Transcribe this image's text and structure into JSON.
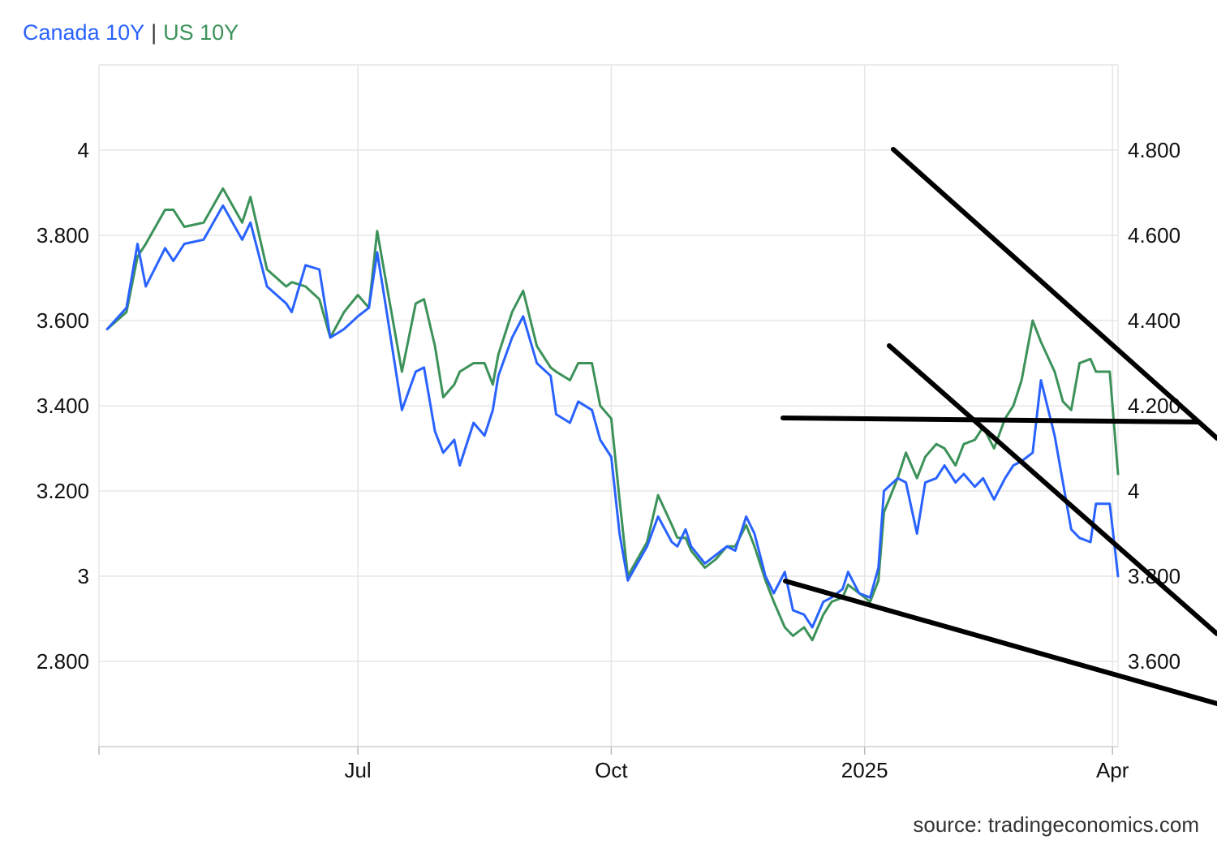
{
  "legend": [
    {
      "label": "Canada 10Y",
      "color": "#2962ff"
    },
    {
      "label": "US 10Y",
      "color": "#3c9259"
    }
  ],
  "legend_separator": "|",
  "source": "source: tradingeconomics.com",
  "chart_data": {
    "type": "line",
    "title": "",
    "x_ticks": [
      "Jul",
      "Oct",
      "2025",
      "Apr"
    ],
    "x_range": [
      "2024-03-29",
      "2025-04-03"
    ],
    "y_left": {
      "ticks": [
        "4",
        "3.800",
        "3.600",
        "3.400",
        "3.200",
        "3",
        "2.800"
      ],
      "range": [
        2.6,
        4.2
      ]
    },
    "y_right": {
      "ticks": [
        "4.800",
        "4.600",
        "4.400",
        "4.200",
        "4",
        "3.800",
        "3.600"
      ],
      "range": [
        3.4,
        5.0
      ]
    },
    "grid": true,
    "legend_position": "top-left",
    "series": [
      {
        "name": "Canada 10Y",
        "axis": "left",
        "color": "#2962ff",
        "points": [
          [
            "2024-04-01",
            3.58
          ],
          [
            "2024-04-08",
            3.63
          ],
          [
            "2024-04-12",
            3.78
          ],
          [
            "2024-04-15",
            3.68
          ],
          [
            "2024-04-22",
            3.77
          ],
          [
            "2024-04-25",
            3.74
          ],
          [
            "2024-04-29",
            3.78
          ],
          [
            "2024-05-06",
            3.79
          ],
          [
            "2024-05-13",
            3.87
          ],
          [
            "2024-05-20",
            3.79
          ],
          [
            "2024-05-23",
            3.83
          ],
          [
            "2024-05-29",
            3.68
          ],
          [
            "2024-06-05",
            3.64
          ],
          [
            "2024-06-07",
            3.62
          ],
          [
            "2024-06-12",
            3.73
          ],
          [
            "2024-06-17",
            3.72
          ],
          [
            "2024-06-21",
            3.56
          ],
          [
            "2024-06-26",
            3.58
          ],
          [
            "2024-07-01",
            3.61
          ],
          [
            "2024-07-05",
            3.63
          ],
          [
            "2024-07-08",
            3.76
          ],
          [
            "2024-07-11",
            3.64
          ],
          [
            "2024-07-17",
            3.39
          ],
          [
            "2024-07-22",
            3.48
          ],
          [
            "2024-07-25",
            3.49
          ],
          [
            "2024-07-29",
            3.34
          ],
          [
            "2024-08-01",
            3.29
          ],
          [
            "2024-08-05",
            3.32
          ],
          [
            "2024-08-07",
            3.26
          ],
          [
            "2024-08-12",
            3.36
          ],
          [
            "2024-08-16",
            3.33
          ],
          [
            "2024-08-19",
            3.39
          ],
          [
            "2024-08-21",
            3.47
          ],
          [
            "2024-08-26",
            3.56
          ],
          [
            "2024-08-30",
            3.61
          ],
          [
            "2024-09-04",
            3.5
          ],
          [
            "2024-09-09",
            3.47
          ],
          [
            "2024-09-11",
            3.38
          ],
          [
            "2024-09-16",
            3.36
          ],
          [
            "2024-09-19",
            3.41
          ],
          [
            "2024-09-24",
            3.39
          ],
          [
            "2024-09-27",
            3.32
          ],
          [
            "2024-10-01",
            3.28
          ],
          [
            "2024-10-04",
            3.1
          ],
          [
            "2024-10-07",
            2.99
          ],
          [
            "2024-10-14",
            3.07
          ],
          [
            "2024-10-18",
            3.14
          ],
          [
            "2024-10-23",
            3.08
          ],
          [
            "2024-10-25",
            3.07
          ],
          [
            "2024-10-28",
            3.11
          ],
          [
            "2024-10-30",
            3.07
          ],
          [
            "2024-11-04",
            3.03
          ],
          [
            "2024-11-08",
            3.05
          ],
          [
            "2024-11-12",
            3.07
          ],
          [
            "2024-11-15",
            3.06
          ],
          [
            "2024-11-19",
            3.14
          ],
          [
            "2024-11-22",
            3.1
          ],
          [
            "2024-11-26",
            3.0
          ],
          [
            "2024-11-29",
            2.96
          ],
          [
            "2024-12-03",
            3.01
          ],
          [
            "2024-12-06",
            2.92
          ],
          [
            "2024-12-10",
            2.91
          ],
          [
            "2024-12-13",
            2.88
          ],
          [
            "2024-12-17",
            2.94
          ],
          [
            "2024-12-20",
            2.95
          ],
          [
            "2024-12-24",
            2.97
          ],
          [
            "2024-12-26",
            3.01
          ],
          [
            "2024-12-30",
            2.96
          ],
          [
            "2025-01-03",
            2.95
          ],
          [
            "2025-01-06",
            3.02
          ],
          [
            "2025-01-08",
            3.2
          ],
          [
            "2025-01-13",
            3.23
          ],
          [
            "2025-01-16",
            3.22
          ],
          [
            "2025-01-20",
            3.1
          ],
          [
            "2025-01-23",
            3.22
          ],
          [
            "2025-01-27",
            3.23
          ],
          [
            "2025-01-30",
            3.26
          ],
          [
            "2025-02-03",
            3.22
          ],
          [
            "2025-02-06",
            3.24
          ],
          [
            "2025-02-10",
            3.21
          ],
          [
            "2025-02-13",
            3.23
          ],
          [
            "2025-02-17",
            3.18
          ],
          [
            "2025-02-21",
            3.23
          ],
          [
            "2025-02-24",
            3.26
          ],
          [
            "2025-02-27",
            3.27
          ],
          [
            "2025-03-03",
            3.29
          ],
          [
            "2025-03-06",
            3.46
          ],
          [
            "2025-03-11",
            3.33
          ],
          [
            "2025-03-14",
            3.22
          ],
          [
            "2025-03-17",
            3.11
          ],
          [
            "2025-03-20",
            3.09
          ],
          [
            "2025-03-24",
            3.08
          ],
          [
            "2025-03-26",
            3.17
          ],
          [
            "2025-03-31",
            3.17
          ],
          [
            "2025-04-03",
            3.0
          ]
        ]
      },
      {
        "name": "US 10Y",
        "axis": "right",
        "color": "#3c9259",
        "points": [
          [
            "2024-04-01",
            4.38
          ],
          [
            "2024-04-08",
            4.42
          ],
          [
            "2024-04-12",
            4.55
          ],
          [
            "2024-04-15",
            4.58
          ],
          [
            "2024-04-22",
            4.66
          ],
          [
            "2024-04-25",
            4.66
          ],
          [
            "2024-04-29",
            4.62
          ],
          [
            "2024-05-06",
            4.63
          ],
          [
            "2024-05-13",
            4.71
          ],
          [
            "2024-05-20",
            4.63
          ],
          [
            "2024-05-23",
            4.69
          ],
          [
            "2024-05-29",
            4.52
          ],
          [
            "2024-06-05",
            4.48
          ],
          [
            "2024-06-07",
            4.49
          ],
          [
            "2024-06-12",
            4.48
          ],
          [
            "2024-06-17",
            4.45
          ],
          [
            "2024-06-21",
            4.36
          ],
          [
            "2024-06-26",
            4.42
          ],
          [
            "2024-07-01",
            4.46
          ],
          [
            "2024-07-05",
            4.43
          ],
          [
            "2024-07-08",
            4.61
          ],
          [
            "2024-07-11",
            4.5
          ],
          [
            "2024-07-17",
            4.28
          ],
          [
            "2024-07-22",
            4.44
          ],
          [
            "2024-07-25",
            4.45
          ],
          [
            "2024-07-29",
            4.34
          ],
          [
            "2024-08-01",
            4.22
          ],
          [
            "2024-08-05",
            4.25
          ],
          [
            "2024-08-07",
            4.28
          ],
          [
            "2024-08-12",
            4.3
          ],
          [
            "2024-08-16",
            4.3
          ],
          [
            "2024-08-19",
            4.25
          ],
          [
            "2024-08-21",
            4.32
          ],
          [
            "2024-08-26",
            4.42
          ],
          [
            "2024-08-30",
            4.47
          ],
          [
            "2024-09-04",
            4.34
          ],
          [
            "2024-09-09",
            4.29
          ],
          [
            "2024-09-11",
            4.28
          ],
          [
            "2024-09-16",
            4.26
          ],
          [
            "2024-09-19",
            4.3
          ],
          [
            "2024-09-24",
            4.3
          ],
          [
            "2024-09-27",
            4.2
          ],
          [
            "2024-10-01",
            4.17
          ],
          [
            "2024-10-04",
            3.98
          ],
          [
            "2024-10-07",
            3.8
          ],
          [
            "2024-10-14",
            3.88
          ],
          [
            "2024-10-18",
            3.99
          ],
          [
            "2024-10-23",
            3.92
          ],
          [
            "2024-10-25",
            3.89
          ],
          [
            "2024-10-28",
            3.89
          ],
          [
            "2024-10-30",
            3.86
          ],
          [
            "2024-11-04",
            3.82
          ],
          [
            "2024-11-08",
            3.84
          ],
          [
            "2024-11-12",
            3.87
          ],
          [
            "2024-11-15",
            3.87
          ],
          [
            "2024-11-19",
            3.92
          ],
          [
            "2024-11-22",
            3.87
          ],
          [
            "2024-11-26",
            3.79
          ],
          [
            "2024-11-29",
            3.74
          ],
          [
            "2024-12-03",
            3.68
          ],
          [
            "2024-12-06",
            3.66
          ],
          [
            "2024-12-10",
            3.68
          ],
          [
            "2024-12-13",
            3.65
          ],
          [
            "2024-12-17",
            3.71
          ],
          [
            "2024-12-20",
            3.74
          ],
          [
            "2024-12-24",
            3.75
          ],
          [
            "2024-12-26",
            3.78
          ],
          [
            "2024-12-30",
            3.76
          ],
          [
            "2025-01-03",
            3.74
          ],
          [
            "2025-01-06",
            3.79
          ],
          [
            "2025-01-08",
            3.95
          ],
          [
            "2025-01-13",
            4.03
          ],
          [
            "2025-01-16",
            4.09
          ],
          [
            "2025-01-20",
            4.03
          ],
          [
            "2025-01-23",
            4.08
          ],
          [
            "2025-01-27",
            4.11
          ],
          [
            "2025-01-30",
            4.1
          ],
          [
            "2025-02-03",
            4.06
          ],
          [
            "2025-02-06",
            4.11
          ],
          [
            "2025-02-10",
            4.12
          ],
          [
            "2025-02-13",
            4.15
          ],
          [
            "2025-02-17",
            4.1
          ],
          [
            "2025-02-21",
            4.17
          ],
          [
            "2025-02-24",
            4.2
          ],
          [
            "2025-02-27",
            4.26
          ],
          [
            "2025-03-03",
            4.4
          ],
          [
            "2025-03-06",
            4.35
          ],
          [
            "2025-03-11",
            4.28
          ],
          [
            "2025-03-14",
            4.21
          ],
          [
            "2025-03-17",
            4.19
          ],
          [
            "2025-03-20",
            4.3
          ],
          [
            "2025-03-24",
            4.31
          ],
          [
            "2025-03-26",
            4.28
          ],
          [
            "2025-03-31",
            4.28
          ],
          [
            "2025-04-03",
            4.04
          ]
        ]
      }
    ]
  }
}
